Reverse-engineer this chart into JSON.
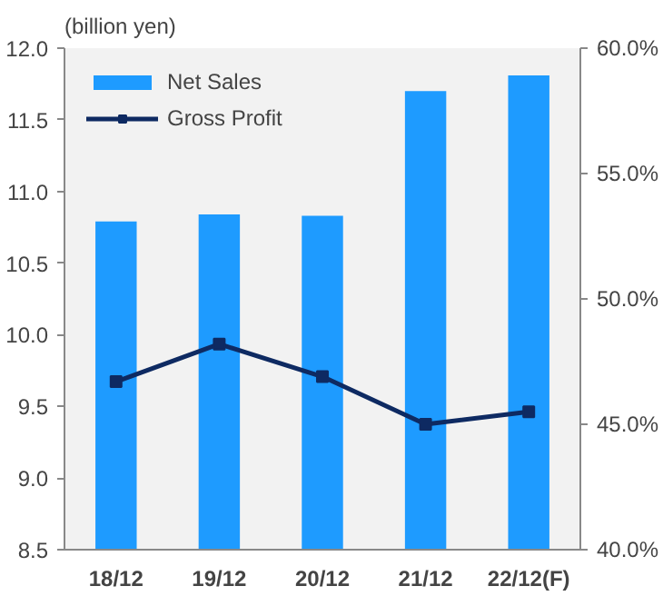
{
  "chart_data": {
    "type": "bar",
    "ylabel": "(billion yen)",
    "categories": [
      "18/12",
      "19/12",
      "20/12",
      "21/12",
      "22/12(F)"
    ],
    "series": [
      {
        "name": "Net Sales",
        "color": "#1e9bff",
        "values": [
          10.79,
          10.84,
          10.83,
          11.7,
          11.81
        ]
      },
      {
        "name": "Gross Profit",
        "type": "line",
        "axis": "y2",
        "color": "#0e2a62",
        "marker": "square",
        "values": [
          46.7,
          48.2,
          46.9,
          45.0,
          45.5
        ]
      }
    ],
    "ylim": [
      8.5,
      12.0
    ],
    "yticks": [
      {
        "value": 8.5,
        "label": "8.5"
      },
      {
        "value": 9,
        "label": "9.0"
      },
      {
        "value": 9.5,
        "label": "9.5"
      },
      {
        "value": 10,
        "label": "10.0"
      },
      {
        "value": 10.5,
        "label": "10.5"
      },
      {
        "value": 11,
        "label": "11.0"
      },
      {
        "value": 11.5,
        "label": "11.5"
      },
      {
        "value": 12,
        "label": "12.0"
      }
    ],
    "y2lim": [
      40,
      60
    ],
    "y2ticks": [
      {
        "value": 40,
        "label": "40.0%"
      },
      {
        "value": 45,
        "label": "45.0%"
      },
      {
        "value": 50,
        "label": "50.0%"
      },
      {
        "value": 55,
        "label": "55.0%"
      },
      {
        "value": 60,
        "label": "60.0%"
      }
    ],
    "grid": false,
    "legend": "top left"
  }
}
